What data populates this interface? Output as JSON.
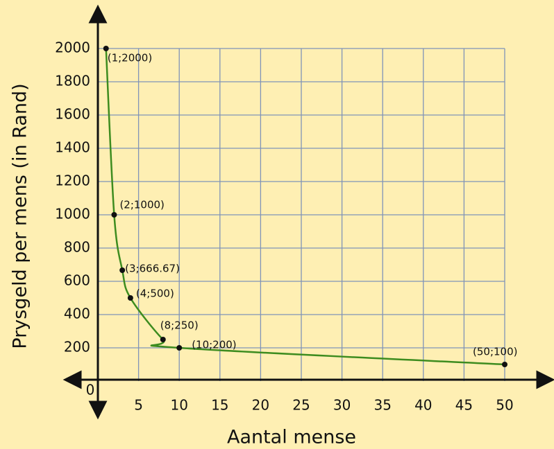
{
  "chart_data": {
    "type": "line",
    "x_label": "Aantal mense",
    "y_label": "Prysgeld per mens (in Rand)",
    "origin_label": "0",
    "x": [
      1,
      2,
      3,
      4,
      8,
      10,
      50
    ],
    "series": [
      {
        "color": "#3d8c1f",
        "values": [
          2000,
          1000,
          666.67,
          500,
          250,
          200,
          100
        ],
        "labels": [
          "(1;2000)",
          "(2;1000)",
          "(3;666.67)",
          "(4;500)",
          "(8;250)",
          "(10;200)",
          "(50;100)"
        ]
      }
    ],
    "xlim": [
      0,
      50
    ],
    "ylim": [
      0,
      2000
    ],
    "xticks": [
      5,
      10,
      15,
      20,
      25,
      30,
      35,
      40,
      45,
      50
    ],
    "yticks": [
      200,
      400,
      600,
      800,
      1000,
      1200,
      1400,
      1600,
      1800,
      2000
    ],
    "grid": true,
    "grid_color": "#7f93b8"
  }
}
